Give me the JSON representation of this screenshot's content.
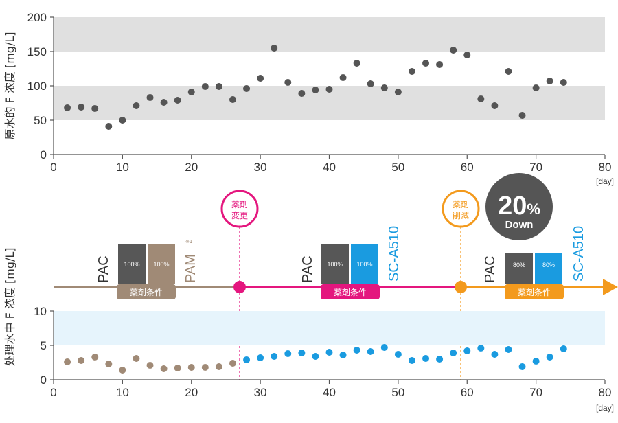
{
  "colors": {
    "band_top": "#e0e0e0",
    "band_bottom": "#e6f4fc",
    "raw_point": "#555555",
    "pam_phase": "#a08a76",
    "change_accent": "#e4167e",
    "sc_point": "#1a9be0",
    "reduce_accent": "#f39a1d",
    "pac_block": "#575757",
    "pam_block": "#a08a76",
    "sc_block": "#1a9be0",
    "badge": "#555555",
    "axis": "#555555",
    "text": "#333333"
  },
  "x_unit": "[day]",
  "chart_data": [
    {
      "type": "scatter",
      "ylabel": "原水的 F 浓度 [mg/L]",
      "xlim": [
        0,
        80
      ],
      "ylim": [
        0,
        200
      ],
      "x_ticks": [
        0,
        10,
        20,
        30,
        40,
        50,
        60,
        70,
        80
      ],
      "y_ticks": [
        0,
        50,
        100,
        150,
        200
      ],
      "bands": [
        [
          50,
          100
        ],
        [
          150,
          200
        ]
      ],
      "points": [
        [
          2,
          68
        ],
        [
          4,
          69
        ],
        [
          6,
          67
        ],
        [
          8,
          41
        ],
        [
          10,
          50
        ],
        [
          12,
          71
        ],
        [
          14,
          83
        ],
        [
          16,
          76
        ],
        [
          18,
          79
        ],
        [
          20,
          91
        ],
        [
          22,
          99
        ],
        [
          24,
          99
        ],
        [
          26,
          80
        ],
        [
          28,
          96
        ],
        [
          30,
          111
        ],
        [
          32,
          155
        ],
        [
          34,
          105
        ],
        [
          36,
          89
        ],
        [
          38,
          94
        ],
        [
          40,
          95
        ],
        [
          42,
          112
        ],
        [
          44,
          133
        ],
        [
          46,
          103
        ],
        [
          48,
          97
        ],
        [
          50,
          91
        ],
        [
          52,
          121
        ],
        [
          54,
          133
        ],
        [
          56,
          131
        ],
        [
          58,
          152
        ],
        [
          60,
          145
        ],
        [
          62,
          81
        ],
        [
          64,
          71
        ],
        [
          66,
          121
        ],
        [
          68,
          57
        ],
        [
          70,
          97
        ],
        [
          72,
          107
        ],
        [
          74,
          105
        ]
      ]
    },
    {
      "type": "scatter",
      "ylabel": "处理水中 F 浓度 [mg/L]",
      "xlim": [
        0,
        80
      ],
      "ylim": [
        0,
        10
      ],
      "x_ticks": [
        0,
        10,
        20,
        30,
        40,
        50,
        60,
        70,
        80
      ],
      "y_ticks": [
        0,
        5,
        10
      ],
      "bands": [
        [
          5,
          10
        ]
      ],
      "series": [
        {
          "points": [
            [
              2,
              2.6
            ],
            [
              4,
              2.8
            ],
            [
              6,
              3.3
            ],
            [
              8,
              2.3
            ],
            [
              10,
              1.4
            ],
            [
              12,
              3.1
            ],
            [
              14,
              2.1
            ],
            [
              16,
              1.6
            ],
            [
              18,
              1.7
            ],
            [
              20,
              1.8
            ],
            [
              22,
              1.8
            ],
            [
              24,
              1.9
            ],
            [
              26,
              2.4
            ]
          ]
        },
        {
          "points": [
            [
              28,
              2.9
            ],
            [
              30,
              3.2
            ],
            [
              32,
              3.4
            ],
            [
              34,
              3.8
            ],
            [
              36,
              3.9
            ],
            [
              38,
              3.4
            ],
            [
              40,
              4.0
            ],
            [
              42,
              3.6
            ],
            [
              44,
              4.3
            ],
            [
              46,
              4.1
            ],
            [
              48,
              4.7
            ],
            [
              50,
              3.7
            ],
            [
              52,
              2.8
            ],
            [
              54,
              3.1
            ],
            [
              56,
              3.0
            ],
            [
              58,
              3.9
            ],
            [
              60,
              4.2
            ],
            [
              62,
              4.6
            ],
            [
              64,
              3.7
            ],
            [
              66,
              4.4
            ],
            [
              68,
              1.9
            ],
            [
              70,
              2.7
            ],
            [
              72,
              3.3
            ],
            [
              74,
              4.5
            ]
          ]
        }
      ]
    }
  ],
  "timeline": {
    "change_day": 27,
    "reduce_day": 59,
    "change_label_1": "薬剤",
    "change_label_2": "変更",
    "reduce_label_1": "薬剤",
    "reduce_label_2": "削減",
    "badge_value": "20",
    "badge_unit": "%",
    "badge_down": "Down",
    "phases": [
      {
        "tag": "薬剤条件",
        "left_label": "PAC",
        "right_label": "PAM",
        "note": "※1",
        "pct1": "100%",
        "pct2": "100%",
        "dose1": 100,
        "dose2": 100
      },
      {
        "tag": "薬剤条件",
        "left_label": "PAC",
        "right_label": "SC-A510",
        "pct1": "100%",
        "pct2": "100%",
        "dose1": 100,
        "dose2": 100
      },
      {
        "tag": "薬剤条件",
        "left_label": "PAC",
        "right_label": "SC-A510",
        "pct1": "80%",
        "pct2": "80%",
        "dose1": 80,
        "dose2": 80
      }
    ]
  }
}
